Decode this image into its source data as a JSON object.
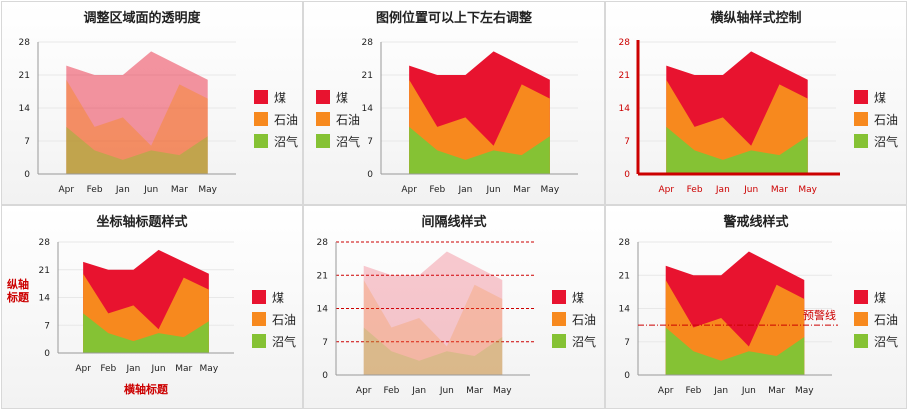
{
  "colors": {
    "coal": "#e8132f",
    "oil": "#f7891e",
    "gas": "#85c234",
    "accent_red": "#cc0000",
    "axis": "#999999",
    "grid": "#e8e8e8"
  },
  "chart_data": [
    {
      "type": "area",
      "title": "调整区域面的透明度",
      "categories": [
        "Apr",
        "Feb",
        "Jan",
        "Jun",
        "Mar",
        "May"
      ],
      "yticks": [
        "0",
        "7",
        "14",
        "21",
        "28"
      ],
      "ylim": [
        0,
        28
      ],
      "legend_position": "right",
      "series": [
        {
          "name": "煤",
          "values": [
            23,
            21,
            21,
            26,
            23,
            20
          ]
        },
        {
          "name": "石油",
          "values": [
            20,
            10,
            12,
            6,
            19,
            16
          ]
        },
        {
          "name": "沼气",
          "values": [
            10,
            5,
            3,
            5,
            4,
            8
          ]
        }
      ]
    },
    {
      "type": "area",
      "title": "图例位置可以上下左右调整",
      "categories": [
        "Apr",
        "Feb",
        "Jan",
        "Jun",
        "Mar",
        "May"
      ],
      "yticks": [
        "0",
        "7",
        "14",
        "21",
        "28"
      ],
      "ylim": [
        0,
        28
      ],
      "legend_position": "left",
      "series": [
        {
          "name": "煤",
          "values": [
            23,
            21,
            21,
            26,
            23,
            20
          ]
        },
        {
          "name": "石油",
          "values": [
            20,
            10,
            12,
            6,
            19,
            16
          ]
        },
        {
          "name": "沼气",
          "values": [
            10,
            5,
            3,
            5,
            4,
            8
          ]
        }
      ]
    },
    {
      "type": "area",
      "title": "横纵轴样式控制",
      "categories": [
        "Apr",
        "Feb",
        "Jan",
        "Jun",
        "Mar",
        "May"
      ],
      "yticks": [
        "0",
        "7",
        "14",
        "21",
        "28"
      ],
      "ylim": [
        0,
        28
      ],
      "legend_position": "right",
      "series": [
        {
          "name": "煤",
          "values": [
            23,
            21,
            21,
            26,
            23,
            20
          ]
        },
        {
          "name": "石油",
          "values": [
            20,
            10,
            12,
            6,
            19,
            16
          ]
        },
        {
          "name": "沼气",
          "values": [
            10,
            5,
            3,
            5,
            4,
            8
          ]
        }
      ]
    },
    {
      "type": "area",
      "title": "坐标轴标题样式",
      "xlabel": "横轴标题",
      "ylabel": "纵轴标题",
      "categories": [
        "Apr",
        "Feb",
        "Jan",
        "Jun",
        "Mar",
        "May"
      ],
      "yticks": [
        "0",
        "7",
        "14",
        "21",
        "28"
      ],
      "ylim": [
        0,
        28
      ],
      "legend_position": "right",
      "series": [
        {
          "name": "煤",
          "values": [
            23,
            21,
            21,
            26,
            23,
            20
          ]
        },
        {
          "name": "石油",
          "values": [
            20,
            10,
            12,
            6,
            19,
            16
          ]
        },
        {
          "name": "沼气",
          "values": [
            10,
            5,
            3,
            5,
            4,
            8
          ]
        }
      ]
    },
    {
      "type": "area",
      "title": "间隔线样式",
      "categories": [
        "Apr",
        "Feb",
        "Jan",
        "Jun",
        "Mar",
        "May"
      ],
      "yticks": [
        "0",
        "7",
        "14",
        "21",
        "28"
      ],
      "ylim": [
        0,
        28
      ],
      "grid": "dashed-red",
      "legend_position": "right",
      "series": [
        {
          "name": "煤",
          "values": [
            23,
            21,
            21,
            26,
            23,
            20
          ]
        },
        {
          "name": "石油",
          "values": [
            20,
            10,
            12,
            6,
            19,
            16
          ]
        },
        {
          "name": "沼气",
          "values": [
            10,
            5,
            3,
            5,
            4,
            8
          ]
        }
      ]
    },
    {
      "type": "area",
      "title": "警戒线样式",
      "warning_line": {
        "value": 10.5,
        "label": "预警线"
      },
      "categories": [
        "Apr",
        "Feb",
        "Jan",
        "Jun",
        "Mar",
        "May"
      ],
      "yticks": [
        "0",
        "7",
        "14",
        "21",
        "28"
      ],
      "ylim": [
        0,
        28
      ],
      "legend_position": "right",
      "series": [
        {
          "name": "煤",
          "values": [
            23,
            21,
            21,
            26,
            23,
            20
          ]
        },
        {
          "name": "石油",
          "values": [
            20,
            10,
            12,
            6,
            19,
            16
          ]
        },
        {
          "name": "沼气",
          "values": [
            10,
            5,
            3,
            5,
            4,
            8
          ]
        }
      ]
    }
  ]
}
